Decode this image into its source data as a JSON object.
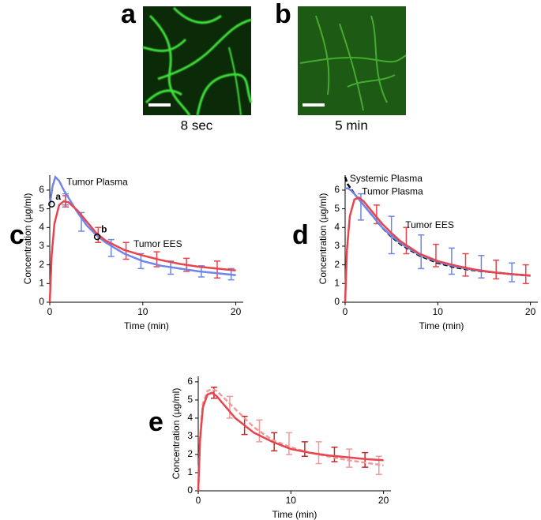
{
  "images": [
    {
      "label": "a",
      "caption": "8 sec"
    },
    {
      "label": "b",
      "caption": "5 min"
    }
  ],
  "chart_data": [
    {
      "type": "line",
      "panel_label": "c",
      "x_label": "Time (min)",
      "y_label": "Concentration (µg/ml)",
      "xlim": [
        0,
        20.8
      ],
      "ylim": [
        0,
        6.8
      ],
      "xticks": [
        0,
        10,
        20
      ],
      "yticks": [
        0,
        1,
        2,
        3,
        4,
        5,
        6
      ],
      "series": [
        {
          "name": "Tumor Plasma",
          "color": "#6f86e8",
          "dashed": false,
          "label_x": 1.8,
          "label_y": 6.4,
          "x": [
            0,
            0.3,
            0.6,
            1,
            1.5,
            2,
            3,
            4,
            5,
            6,
            8,
            10,
            12,
            14,
            16,
            18,
            20
          ],
          "values": [
            5.2,
            6.2,
            6.7,
            6.5,
            6.0,
            5.6,
            4.8,
            4.1,
            3.6,
            3.2,
            2.6,
            2.2,
            1.95,
            1.8,
            1.65,
            1.55,
            1.45
          ]
        },
        {
          "name": "Tumor EES",
          "color": "#e8444e",
          "dashed": false,
          "label_x": 9,
          "label_y": 3.1,
          "x": [
            0,
            0.2,
            0.5,
            1,
            1.5,
            2,
            3,
            4,
            5,
            6,
            8,
            10,
            12,
            14,
            16,
            18,
            20
          ],
          "values": [
            0,
            2.5,
            4.2,
            5.2,
            5.4,
            5.35,
            4.9,
            4.3,
            3.7,
            3.3,
            2.8,
            2.5,
            2.25,
            2.05,
            1.9,
            1.8,
            1.7
          ]
        }
      ],
      "error_bars": [
        {
          "color": "#6f86e8",
          "x": [
            1.7,
            3.4,
            6.6,
            9.8,
            13,
            16.3,
            19.5
          ],
          "values": [
            5.5,
            4.3,
            2.9,
            2.2,
            1.85,
            1.65,
            1.5
          ],
          "errors": [
            0.3,
            0.5,
            0.45,
            0.4,
            0.35,
            0.3,
            0.3
          ]
        },
        {
          "color": "#e8444e",
          "x": [
            1.7,
            5.2,
            8.2,
            11.5,
            14.7,
            18
          ],
          "values": [
            5.4,
            3.6,
            2.75,
            2.3,
            2.0,
            1.75
          ],
          "errors": [
            0.3,
            0.4,
            0.45,
            0.4,
            0.35,
            0.45
          ]
        }
      ],
      "annotations": [
        {
          "text": "a",
          "x": 0.2,
          "y": 5.25
        },
        {
          "text": "b",
          "x": 5.1,
          "y": 3.5
        }
      ]
    },
    {
      "type": "line",
      "panel_label": "d",
      "x_label": "Time (min)",
      "y_label": "Concentration (µg/ml)",
      "xlim": [
        0,
        20.8
      ],
      "ylim": [
        0,
        6.8
      ],
      "xticks": [
        0,
        10,
        20
      ],
      "yticks": [
        0,
        1,
        2,
        3,
        4,
        5,
        6
      ],
      "series": [
        {
          "name": "Systemic Plasma",
          "color": "#000000",
          "dashed": true,
          "label_x": 0.5,
          "label_y": 6.6,
          "x": [
            0,
            0.3,
            0.6,
            1,
            1.5,
            2,
            3,
            4,
            5,
            6,
            8,
            10,
            12,
            14,
            16,
            18,
            20
          ],
          "values": [
            6.7,
            6.3,
            6.1,
            5.8,
            5.5,
            5.2,
            4.6,
            4.0,
            3.5,
            3.1,
            2.5,
            2.1,
            1.85,
            1.7,
            1.6,
            1.5,
            1.42
          ]
        },
        {
          "name": "Tumor Plasma",
          "color": "#6f86e8",
          "dashed": false,
          "label_x": 1.8,
          "label_y": 5.9,
          "x": [
            0,
            0.3,
            0.6,
            1,
            1.5,
            2,
            3,
            4,
            5,
            6,
            8,
            10,
            12,
            14,
            16,
            18,
            20
          ],
          "values": [
            6.1,
            6.1,
            6.0,
            5.8,
            5.5,
            5.2,
            4.6,
            4.0,
            3.55,
            3.15,
            2.55,
            2.15,
            1.9,
            1.72,
            1.6,
            1.5,
            1.42
          ]
        },
        {
          "name": "Tumor EES",
          "color": "#e8444e",
          "dashed": false,
          "label_x": 6.5,
          "label_y": 4.1,
          "x": [
            0,
            0.2,
            0.5,
            1,
            1.5,
            2,
            3,
            4,
            5,
            6,
            8,
            10,
            12,
            14,
            16,
            18,
            20
          ],
          "values": [
            0,
            2.8,
            4.6,
            5.5,
            5.6,
            5.4,
            4.8,
            4.2,
            3.7,
            3.25,
            2.6,
            2.2,
            1.95,
            1.75,
            1.6,
            1.5,
            1.43
          ]
        }
      ],
      "error_bars": [
        {
          "color": "#6f86e8",
          "x": [
            1.7,
            5,
            8.2,
            11.5,
            14.7,
            18
          ],
          "values": [
            5.1,
            3.6,
            2.7,
            2.2,
            1.9,
            1.6
          ],
          "errors": [
            0.7,
            1.0,
            0.9,
            0.7,
            0.6,
            0.5
          ]
        },
        {
          "color": "#e8444e",
          "x": [
            3.4,
            6.6,
            9.8,
            13,
            16.3,
            19.5
          ],
          "values": [
            4.7,
            3.3,
            2.5,
            2.0,
            1.75,
            1.5
          ],
          "errors": [
            0.5,
            0.7,
            0.6,
            0.6,
            0.5,
            0.5
          ]
        }
      ],
      "annotations": []
    },
    {
      "type": "line",
      "panel_label": "e",
      "x_label": "Time (min)",
      "y_label": "Concentration (µg/ml)",
      "xlim": [
        0,
        20.8
      ],
      "ylim": [
        0,
        6.3
      ],
      "xticks": [
        0,
        10,
        20
      ],
      "yticks": [
        0,
        1,
        2,
        3,
        4,
        5,
        6
      ],
      "series": [
        {
          "color": "#f19a9a",
          "dashed": true,
          "x": [
            0,
            0.2,
            0.5,
            1,
            1.5,
            2,
            3,
            4,
            5,
            6,
            8,
            10,
            12,
            14,
            16,
            18,
            20
          ],
          "values": [
            0,
            3.0,
            4.8,
            5.5,
            5.6,
            5.5,
            5.0,
            4.5,
            4.0,
            3.5,
            2.8,
            2.4,
            2.1,
            1.9,
            1.7,
            1.55,
            1.4
          ]
        },
        {
          "color": "#e8444e",
          "dashed": false,
          "x": [
            0,
            0.2,
            0.5,
            1,
            1.5,
            2,
            3,
            4,
            5,
            6,
            8,
            10,
            12,
            14,
            16,
            18,
            20
          ],
          "values": [
            0,
            2.8,
            4.6,
            5.3,
            5.4,
            5.2,
            4.6,
            4.0,
            3.6,
            3.2,
            2.7,
            2.3,
            2.1,
            1.95,
            1.85,
            1.75,
            1.68
          ]
        }
      ],
      "error_bars": [
        {
          "color": "#f19a9a",
          "x": [
            3.4,
            6.6,
            9.8,
            13,
            16.3,
            19.5
          ],
          "values": [
            4.6,
            3.3,
            2.6,
            2.1,
            1.8,
            1.4
          ],
          "errors": [
            0.6,
            0.6,
            0.6,
            0.6,
            0.5,
            0.5
          ]
        },
        {
          "color": "#c62828",
          "x": [
            1.7,
            5,
            8.2,
            11.5,
            14.7,
            18
          ],
          "values": [
            5.4,
            3.6,
            2.7,
            2.3,
            2.0,
            1.7
          ],
          "errors": [
            0.3,
            0.5,
            0.5,
            0.4,
            0.4,
            0.4
          ]
        }
      ],
      "annotations": []
    }
  ]
}
